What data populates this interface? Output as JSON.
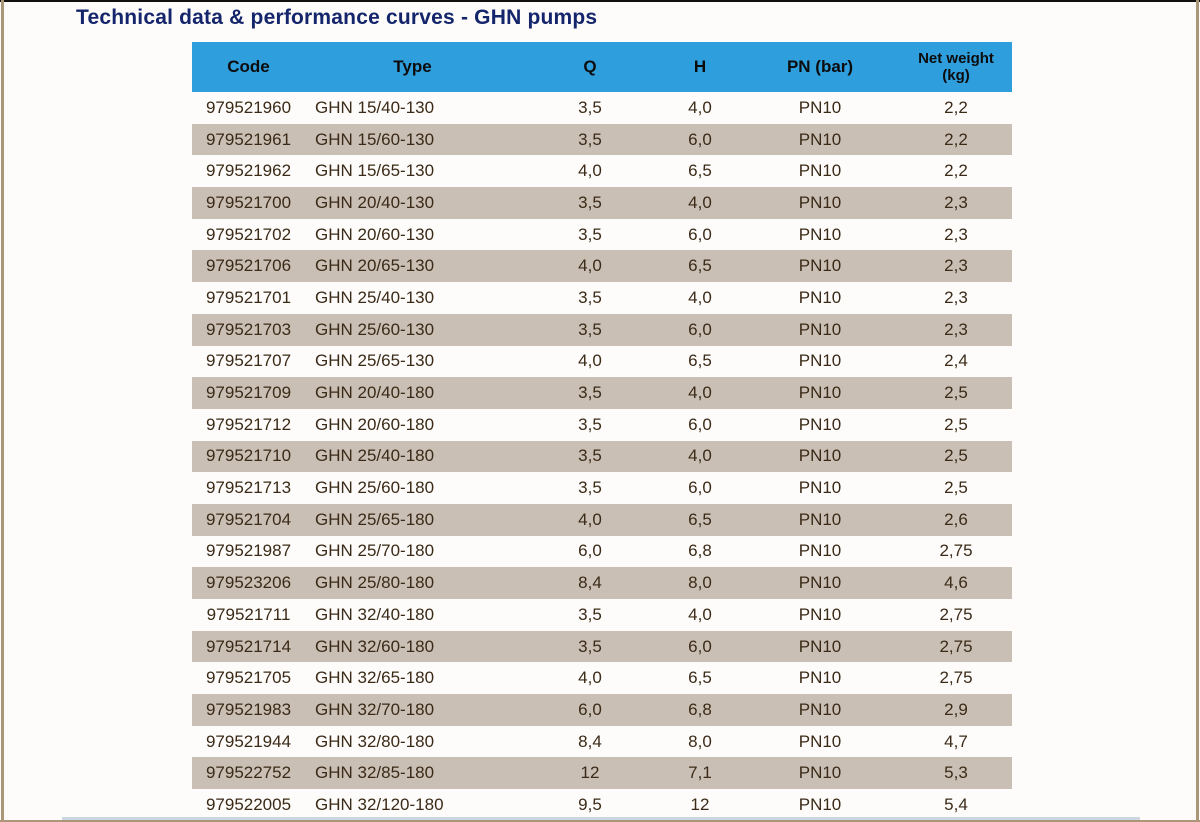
{
  "page": {
    "title": "Technical data & performance curves - GHN pumps"
  },
  "colors": {
    "header_blue": "#2f9edd",
    "stripe_tan": "#c9bfb4",
    "title_navy": "#14256b",
    "frame_tan": "#ab9778"
  },
  "table": {
    "columns": [
      {
        "key": "code",
        "label": "Code"
      },
      {
        "key": "type",
        "label": "Type"
      },
      {
        "key": "q",
        "label": "Q"
      },
      {
        "key": "h",
        "label": "H"
      },
      {
        "key": "pn",
        "label": "PN (bar)"
      },
      {
        "key": "weight",
        "label": "Net weight\n(kg)"
      }
    ],
    "rows": [
      {
        "code": "979521960",
        "type": "GHN 15/40-130",
        "q": "3,5",
        "h": "4,0",
        "pn": "PN10",
        "weight": "2,2"
      },
      {
        "code": "979521961",
        "type": "GHN 15/60-130",
        "q": "3,5",
        "h": "6,0",
        "pn": "PN10",
        "weight": "2,2"
      },
      {
        "code": "979521962",
        "type": "GHN 15/65-130",
        "q": "4,0",
        "h": "6,5",
        "pn": "PN10",
        "weight": "2,2"
      },
      {
        "code": "979521700",
        "type": "GHN 20/40-130",
        "q": "3,5",
        "h": "4,0",
        "pn": "PN10",
        "weight": "2,3"
      },
      {
        "code": "979521702",
        "type": "GHN 20/60-130",
        "q": "3,5",
        "h": "6,0",
        "pn": "PN10",
        "weight": "2,3"
      },
      {
        "code": "979521706",
        "type": "GHN 20/65-130",
        "q": "4,0",
        "h": "6,5",
        "pn": "PN10",
        "weight": "2,3"
      },
      {
        "code": "979521701",
        "type": "GHN 25/40-130",
        "q": "3,5",
        "h": "4,0",
        "pn": "PN10",
        "weight": "2,3"
      },
      {
        "code": "979521703",
        "type": "GHN 25/60-130",
        "q": "3,5",
        "h": "6,0",
        "pn": "PN10",
        "weight": "2,3"
      },
      {
        "code": "979521707",
        "type": "GHN 25/65-130",
        "q": "4,0",
        "h": "6,5",
        "pn": "PN10",
        "weight": "2,4"
      },
      {
        "code": "979521709",
        "type": "GHN 20/40-180",
        "q": "3,5",
        "h": "4,0",
        "pn": "PN10",
        "weight": "2,5"
      },
      {
        "code": "979521712",
        "type": "GHN 20/60-180",
        "q": "3,5",
        "h": "6,0",
        "pn": "PN10",
        "weight": "2,5"
      },
      {
        "code": "979521710",
        "type": "GHN 25/40-180",
        "q": "3,5",
        "h": "4,0",
        "pn": "PN10",
        "weight": "2,5"
      },
      {
        "code": "979521713",
        "type": "GHN 25/60-180",
        "q": "3,5",
        "h": "6,0",
        "pn": "PN10",
        "weight": "2,5"
      },
      {
        "code": "979521704",
        "type": "GHN 25/65-180",
        "q": "4,0",
        "h": "6,5",
        "pn": "PN10",
        "weight": "2,6"
      },
      {
        "code": "979521987",
        "type": "GHN 25/70-180",
        "q": "6,0",
        "h": "6,8",
        "pn": "PN10",
        "weight": "2,75"
      },
      {
        "code": "979523206",
        "type": "GHN 25/80-180",
        "q": "8,4",
        "h": "8,0",
        "pn": "PN10",
        "weight": "4,6"
      },
      {
        "code": "979521711",
        "type": "GHN 32/40-180",
        "q": "3,5",
        "h": "4,0",
        "pn": "PN10",
        "weight": "2,75"
      },
      {
        "code": "979521714",
        "type": "GHN 32/60-180",
        "q": "3,5",
        "h": "6,0",
        "pn": "PN10",
        "weight": "2,75"
      },
      {
        "code": "979521705",
        "type": "GHN 32/65-180",
        "q": "4,0",
        "h": "6,5",
        "pn": "PN10",
        "weight": "2,75"
      },
      {
        "code": "979521983",
        "type": "GHN 32/70-180",
        "q": "6,0",
        "h": "6,8",
        "pn": "PN10",
        "weight": "2,9"
      },
      {
        "code": "979521944",
        "type": "GHN 32/80-180",
        "q": "8,4",
        "h": "8,0",
        "pn": "PN10",
        "weight": "4,7"
      },
      {
        "code": "979522752",
        "type": "GHN 32/85-180",
        "q": "12",
        "h": "7,1",
        "pn": "PN10",
        "weight": "5,3"
      },
      {
        "code": "979522005",
        "type": "GHN 32/120-180",
        "q": "9,5",
        "h": "12",
        "pn": "PN10",
        "weight": "5,4"
      }
    ]
  }
}
